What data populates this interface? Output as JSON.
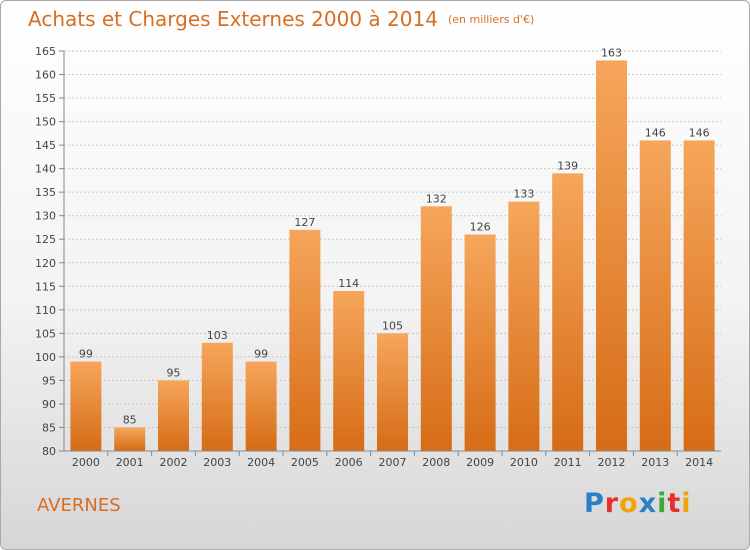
{
  "title": "Achats et Charges Externes 2000 à 2014",
  "subtitle": "(en milliers d'€)",
  "commune": "AVERNES",
  "logo": {
    "letters": [
      "P",
      "r",
      "o",
      "x",
      "i",
      "t",
      "i"
    ],
    "colors": [
      "#2a7fc8",
      "#e3312d",
      "#f0a30a",
      "#2a7fc8",
      "#3aaa35",
      "#e3312d",
      "#f0a30a"
    ]
  },
  "colors": {
    "bar_top": "#f6a65b",
    "bar_bottom": "#d66c16",
    "title": "#d86e22"
  },
  "chart_data": {
    "type": "bar",
    "categories": [
      "2000",
      "2001",
      "2002",
      "2003",
      "2004",
      "2005",
      "2006",
      "2007",
      "2008",
      "2009",
      "2010",
      "2011",
      "2012",
      "2013",
      "2014"
    ],
    "values": [
      99,
      85,
      95,
      103,
      99,
      127,
      114,
      105,
      132,
      126,
      133,
      139,
      163,
      146,
      146
    ],
    "ylim": [
      80,
      165
    ],
    "yticks": [
      80,
      85,
      90,
      95,
      100,
      105,
      110,
      115,
      120,
      125,
      130,
      135,
      140,
      145,
      150,
      155,
      160,
      165
    ],
    "grid": true
  }
}
